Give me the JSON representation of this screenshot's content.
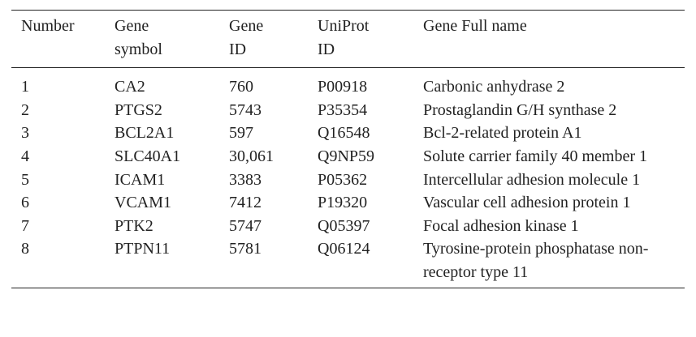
{
  "table": {
    "header": [
      "Number",
      "Gene symbol",
      "Gene ID",
      "UniProt ID",
      "Gene Full name"
    ],
    "rows": [
      [
        "1",
        "CA2",
        "760",
        "P00918",
        "Carbonic anhydrase 2"
      ],
      [
        "2",
        "PTGS2",
        "5743",
        "P35354",
        "Prostaglandin G/H synthase 2"
      ],
      [
        "3",
        "BCL2A1",
        "597",
        "Q16548",
        "Bcl-2-related protein A1"
      ],
      [
        "4",
        "SLC40A1",
        "30,061",
        "Q9NP59",
        "Solute carrier family 40 member 1"
      ],
      [
        "5",
        "ICAM1",
        "3383",
        "P05362",
        "Intercellular adhesion molecule 1"
      ],
      [
        "6",
        "VCAM1",
        "7412",
        "P19320",
        "Vascular cell adhesion protein 1"
      ],
      [
        "7",
        "PTK2",
        "5747",
        "Q05397",
        "Focal adhesion kinase 1"
      ],
      [
        "8",
        "PTPN11",
        "5781",
        "Q06124",
        "Tyrosine-protein phosphatase non-receptor type 11"
      ]
    ]
  }
}
